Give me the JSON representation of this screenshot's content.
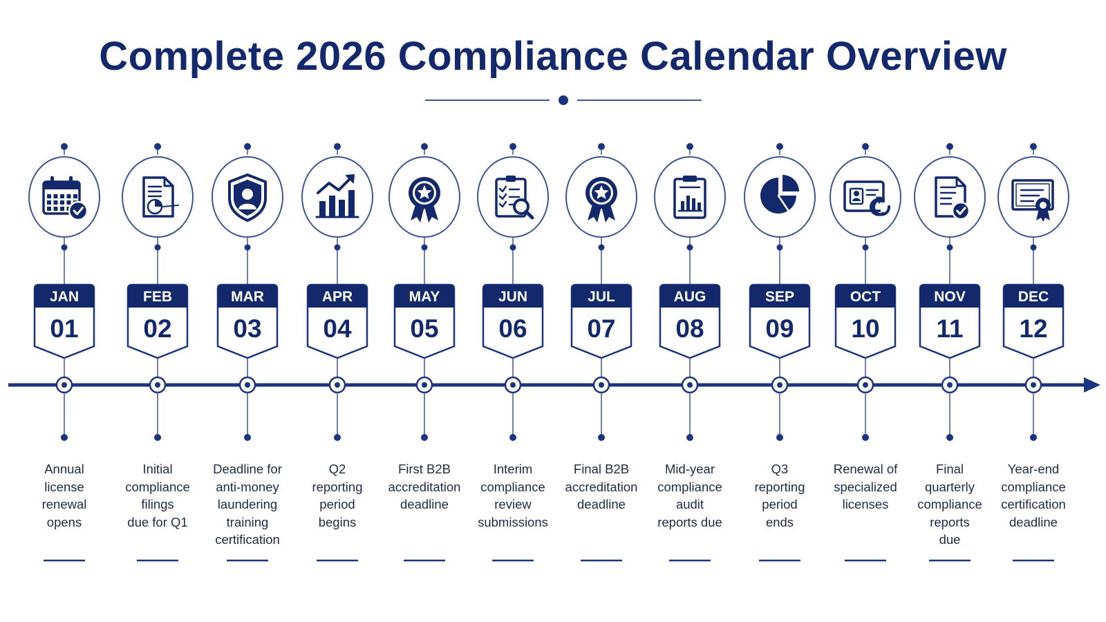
{
  "title": "Complete 2026 Compliance Calendar Overview",
  "colors": {
    "primary": "#14296b",
    "accent": "#1c3480",
    "line": "#3f5590",
    "text": "#1e2a45"
  },
  "milestones": [
    {
      "month": "JAN",
      "day": "01",
      "icon": "calendar-check-icon",
      "description": "Annual license renewal opens"
    },
    {
      "month": "FEB",
      "day": "02",
      "icon": "document-chart-icon",
      "description": "Initial compliance filings due for Q1"
    },
    {
      "month": "MAR",
      "day": "03",
      "icon": "shield-user-icon",
      "description": "Deadline for anti-money laundering training certification"
    },
    {
      "month": "APR",
      "day": "04",
      "icon": "growth-chart-icon",
      "description": "Q2 reporting period begins"
    },
    {
      "month": "MAY",
      "day": "05",
      "icon": "award-ribbon-icon",
      "description": "First B2B accreditation deadline"
    },
    {
      "month": "JUN",
      "day": "06",
      "icon": "clipboard-search-icon",
      "description": "Interim compliance review submissions"
    },
    {
      "month": "JUL",
      "day": "07",
      "icon": "award-ribbon-icon",
      "description": "Final B2B accreditation deadline"
    },
    {
      "month": "AUG",
      "day": "08",
      "icon": "clipboard-chart-icon",
      "description": "Mid-year compliance audit reports due"
    },
    {
      "month": "SEP",
      "day": "09",
      "icon": "pie-chart-icon",
      "description": "Q3 reporting period ends"
    },
    {
      "month": "OCT",
      "day": "10",
      "icon": "license-renew-icon",
      "description": "Renewal of specialized licenses"
    },
    {
      "month": "NOV",
      "day": "11",
      "icon": "document-check-icon",
      "description": "Final quarterly compliance reports due"
    },
    {
      "month": "DEC",
      "day": "12",
      "icon": "certificate-icon",
      "description": "Year-end compliance certification deadline"
    }
  ]
}
